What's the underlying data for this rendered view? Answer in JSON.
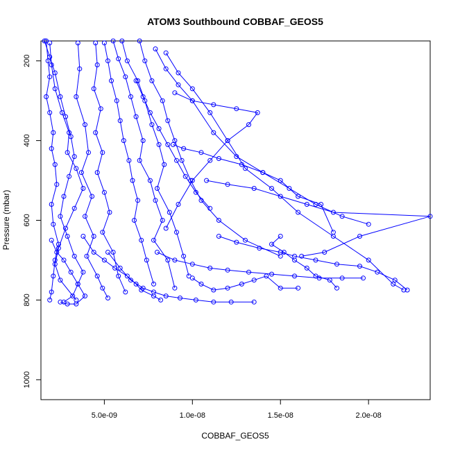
{
  "chart_data": {
    "type": "line",
    "title": "ATOM3 Southbound COBBAF_GEOS5",
    "xlabel": "COBBAF_GEOS5",
    "ylabel": "Pressure (mbar)",
    "xlim": [
      1.4e-09,
      2.35e-08
    ],
    "ylim": [
      1050,
      150
    ],
    "y_reversed": true,
    "x_ticks": [
      {
        "value": 5e-09,
        "label": "5.0e-09"
      },
      {
        "value": 1e-08,
        "label": "1.0e-08"
      },
      {
        "value": 1.5e-08,
        "label": "1.5e-08"
      },
      {
        "value": 2e-08,
        "label": "2.0e-08"
      }
    ],
    "y_ticks": [
      {
        "value": 200,
        "label": "200"
      },
      {
        "value": 400,
        "label": "400"
      },
      {
        "value": 600,
        "label": "600"
      },
      {
        "value": 800,
        "label": "800"
      },
      {
        "value": 1000,
        "label": "1000"
      }
    ],
    "marker": "open-circle",
    "color": "#0000ff",
    "grid": false,
    "legend": "none",
    "series": [
      {
        "x": [
          1.7e-09,
          1.8e-09,
          1.9e-09,
          1.7e-09,
          1.9e-09,
          2.1e-09,
          2e-09,
          2.2e-09,
          2.3e-09,
          2e-09,
          2.1e-09,
          2.4e-09,
          2.2e-09,
          2.1e-09,
          2e-09,
          1.9e-09
        ],
        "y": [
          150,
          200,
          240,
          290,
          330,
          380,
          420,
          460,
          510,
          560,
          610,
          660,
          700,
          740,
          780,
          800
        ]
      },
      {
        "x": [
          1.6e-09,
          1.9e-09,
          2.2e-09,
          2.5e-09,
          2.8e-09,
          3.1e-09,
          3.3e-09,
          3e-09,
          2.7e-09,
          2.5e-09,
          2.9e-09,
          3.3e-09,
          3.8e-09,
          3.5e-09,
          3.2e-09,
          2.7e-09
        ],
        "y": [
          150,
          190,
          230,
          290,
          340,
          390,
          440,
          490,
          540,
          590,
          640,
          690,
          730,
          760,
          790,
          805
        ]
      },
      {
        "x": [
          1.9e-09,
          2e-09,
          2.2e-09,
          2.6e-09,
          3e-09,
          2.9e-09,
          3.4e-09,
          3.8e-09,
          3.3e-09,
          2.8e-09,
          2.4e-09,
          2.2e-09,
          2.5e-09,
          3.4e-09
        ],
        "y": [
          155,
          210,
          270,
          330,
          380,
          430,
          470,
          520,
          570,
          620,
          670,
          710,
          750,
          800
        ]
      },
      {
        "x": [
          3.5e-09,
          3.6e-09,
          3.4e-09,
          3.9e-09,
          4.1e-09,
          3.7e-09,
          4.3e-09,
          3.9e-09,
          4.4e-09,
          4e-09,
          4.6e-09,
          4.9e-09,
          5.2e-09
        ],
        "y": [
          155,
          220,
          290,
          360,
          430,
          480,
          540,
          590,
          640,
          690,
          740,
          770,
          795
        ]
      },
      {
        "x": [
          4.5e-09,
          4.6e-09,
          4.4e-09,
          4.8e-09,
          4.5e-09,
          4.9e-09,
          4.6e-09,
          5e-09,
          5.3e-09,
          4.9e-09,
          5.5e-09,
          5.8e-09,
          6.2e-09
        ],
        "y": [
          155,
          210,
          270,
          320,
          380,
          430,
          480,
          530,
          580,
          630,
          680,
          740,
          780
        ]
      },
      {
        "x": [
          5e-09,
          5.2e-09,
          5.4e-09,
          5.7e-09,
          5.9e-09,
          6.1e-09,
          6.4e-09,
          6.6e-09,
          6.9e-09,
          6.7e-09,
          7.1e-09,
          7.4e-09,
          7.8e-09
        ],
        "y": [
          155,
          200,
          250,
          300,
          350,
          400,
          450,
          500,
          550,
          600,
          650,
          700,
          760
        ]
      },
      {
        "x": [
          5.5e-09,
          5.8e-09,
          6.2e-09,
          6.5e-09,
          6.8e-09,
          7.2e-09,
          7e-09,
          7.6e-09,
          7.9e-09,
          8.3e-09,
          7.8e-09,
          8.6e-09,
          9e-09
        ],
        "y": [
          150,
          195,
          240,
          290,
          340,
          400,
          450,
          500,
          550,
          600,
          650,
          700,
          770
        ]
      },
      {
        "x": [
          6e-09,
          6.3e-09,
          6.9e-09,
          7.3e-09,
          7.7e-09,
          8.1e-09,
          8.4e-09,
          8e-09,
          8.7e-09,
          9.1e-09,
          9.5e-09,
          9.8e-09
        ],
        "y": [
          150,
          200,
          250,
          300,
          360,
          410,
          460,
          520,
          580,
          630,
          690,
          740
        ]
      },
      {
        "x": [
          7e-09,
          7.3e-09,
          7.7e-09,
          8.3e-09,
          8.6e-09,
          9e-09,
          9.4e-09,
          9.9e-09,
          1.05e-08,
          1.15e-08,
          1.3e-08,
          1.5e-08
        ],
        "y": [
          150,
          200,
          250,
          300,
          350,
          400,
          450,
          500,
          550,
          600,
          650,
          690
        ]
      },
      {
        "x": [
          7.9e-09,
          8.5e-09,
          9.2e-09,
          1e-08,
          1.12e-08,
          1.25e-08,
          1.4e-08,
          1.55e-08,
          1.7e-08,
          1.85e-08,
          2e-08
        ],
        "y": [
          170,
          220,
          260,
          300,
          380,
          440,
          480,
          520,
          560,
          590,
          610
        ]
      },
      {
        "x": [
          8.5e-09,
          9.2e-09,
          1e-08,
          1.1e-08,
          1.2e-08,
          1.3e-08,
          1.45e-08,
          1.6e-08,
          1.8e-08,
          2e-08,
          2.14e-08,
          2.2e-08
        ],
        "y": [
          180,
          230,
          270,
          330,
          400,
          470,
          520,
          580,
          640,
          700,
          760,
          775
        ]
      },
      {
        "x": [
          5.2e-09,
          5.9e-09,
          6.5e-09,
          7.2e-09,
          7.8e-09,
          8.5e-09,
          9.3e-09,
          1.02e-08,
          1.12e-08,
          1.22e-08,
          1.35e-08
        ],
        "y": [
          680,
          720,
          750,
          770,
          780,
          790,
          795,
          800,
          805,
          805,
          805
        ]
      },
      {
        "x": [
          9e-09,
          1e-08,
          1.12e-08,
          1.25e-08,
          1.37e-08,
          1.32e-08,
          1.2e-08,
          1.1e-08,
          1e-08,
          9.2e-09,
          8.5e-09
        ],
        "y": [
          280,
          300,
          310,
          320,
          330,
          360,
          400,
          450,
          500,
          560,
          620
        ]
      },
      {
        "x": [
          1.08e-08,
          1.2e-08,
          1.35e-08,
          1.5e-08,
          1.65e-08,
          1.8e-08,
          2.35e-08,
          1.95e-08,
          1.75e-08,
          1.62e-08
        ],
        "y": [
          500,
          510,
          520,
          540,
          560,
          580,
          590,
          640,
          680,
          690
        ]
      },
      {
        "x": [
          8e-09,
          9e-09,
          1e-08,
          1.1e-08,
          1.2e-08,
          1.32e-08,
          1.45e-08,
          1.58e-08,
          1.72e-08,
          1.85e-08,
          1.97e-08
        ],
        "y": [
          680,
          700,
          710,
          720,
          725,
          730,
          735,
          740,
          745,
          745,
          745
        ]
      },
      {
        "x": [
          1e-08,
          1.05e-08,
          1.12e-08,
          1.2e-08,
          1.28e-08,
          1.35e-08,
          1.42e-08,
          1.5e-08,
          1.6e-08
        ],
        "y": [
          745,
          760,
          775,
          770,
          760,
          750,
          740,
          770,
          770
        ]
      },
      {
        "x": [
          1.15e-08,
          1.25e-08,
          1.38e-08,
          1.5e-08,
          1.58e-08,
          1.7e-08,
          1.82e-08,
          1.95e-08,
          2.05e-08,
          2.15e-08,
          2.22e-08
        ],
        "y": [
          640,
          655,
          670,
          680,
          690,
          700,
          710,
          715,
          730,
          750,
          775
        ]
      },
      {
        "x": [
          8.9e-09,
          9.5e-09,
          1.05e-08,
          1.15e-08,
          1.28e-08,
          1.4e-08,
          1.5e-08,
          1.6e-08,
          1.73e-08,
          1.8e-08
        ],
        "y": [
          410,
          420,
          430,
          445,
          460,
          480,
          500,
          540,
          560,
          630
        ]
      },
      {
        "x": [
          3.8e-09,
          4.4e-09,
          5e-09,
          5.6e-09,
          6.3e-09,
          6.8e-09,
          7.1e-09,
          7.8e-09,
          8.2e-09
        ],
        "y": [
          640,
          680,
          700,
          720,
          740,
          760,
          775,
          790,
          800
        ]
      },
      {
        "x": [
          2e-09,
          2.3e-09,
          2.7e-09,
          3.1e-09,
          3.5e-09,
          3.9e-09,
          3.4e-09,
          2.9e-09,
          2.5e-09
        ],
        "y": [
          650,
          680,
          700,
          730,
          760,
          790,
          810,
          810,
          805
        ]
      },
      {
        "x": [
          6.8e-09,
          7.2e-09,
          7.6e-09,
          8.1e-09,
          8.6e-09,
          9.1e-09,
          9.6e-09,
          1.02e-08,
          1.1e-08
        ],
        "y": [
          250,
          290,
          330,
          370,
          410,
          450,
          490,
          530,
          570
        ]
      },
      {
        "x": [
          1.5e-08,
          1.45e-08,
          1.52e-08,
          1.58e-08,
          1.65e-08,
          1.7e-08,
          1.78e-08,
          1.82e-08
        ],
        "y": [
          640,
          660,
          680,
          700,
          720,
          740,
          750,
          770
        ]
      }
    ]
  }
}
